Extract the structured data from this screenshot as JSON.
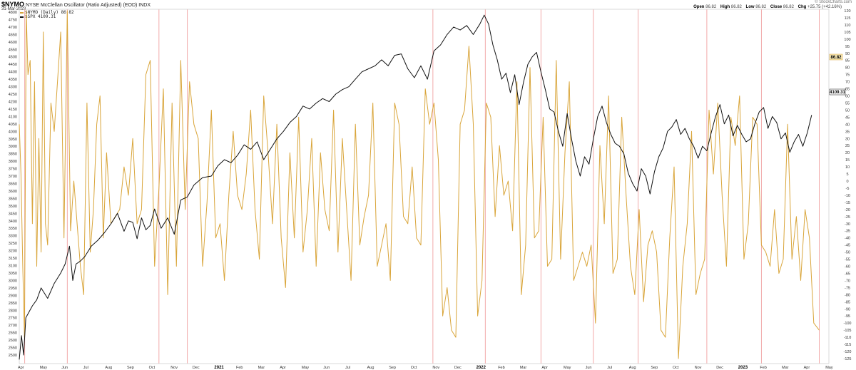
{
  "header": {
    "symbol": "$NYMO",
    "title": "NYSE McClellan Oscillator (Ratio Adjusted) (EOD) INDX",
    "date": "31-Mar-2023",
    "credit": "© StockCharts.com",
    "ohlc": {
      "open_label": "Open",
      "open": "86.82",
      "high_label": "High",
      "high": "86.82",
      "low_label": "Low",
      "low": "86.82",
      "close_label": "Close",
      "close": "86.82",
      "chg_label": "Chg",
      "chg": "+25.75 (+42.16%)"
    }
  },
  "legend": [
    {
      "label": "$NYMO (Daily) 86.82",
      "color": "#d9a53a"
    },
    {
      "label": "$SPX 4109.31",
      "color": "#111111"
    }
  ],
  "badges": {
    "nymo_last": "86.82",
    "spx_last": "4109.31"
  },
  "colors": {
    "nymo": "#d9a53a",
    "spx": "#111111",
    "vline": "#f0a0a0",
    "grid_border": "#cccccc",
    "badge_nymo_bg": "#f6e7b4"
  },
  "chart_data": {
    "type": "line",
    "title": "$NYMO NYSE McClellan Oscillator (Ratio Adjusted) (EOD) INDX",
    "subtitle": "31-Mar-2023",
    "xlabel": "",
    "ylabel_left": "$SPX",
    "ylabel_right": "$NYMO",
    "x_ticks": [
      "Apr",
      "May",
      "Jun",
      "Jul",
      "Aug",
      "Sep",
      "Oct",
      "Nov",
      "Dec",
      "2021",
      "Feb",
      "Mar",
      "Apr",
      "May",
      "Jun",
      "Jul",
      "Aug",
      "Sep",
      "Oct",
      "Nov",
      "Dec",
      "2022",
      "Feb",
      "Mar",
      "Apr",
      "May",
      "Jun",
      "Jul",
      "Aug",
      "Sep",
      "Oct",
      "Nov",
      "Dec",
      "2023",
      "Feb",
      "Mar",
      "Apr",
      "May"
    ],
    "year_ticks": [
      "2021",
      "2022",
      "2023"
    ],
    "y_left_ticks": [
      4800,
      4750,
      4700,
      4650,
      4600,
      4550,
      4500,
      4450,
      4400,
      4350,
      4300,
      4250,
      4200,
      4150,
      4100,
      4050,
      4000,
      3950,
      3900,
      3850,
      3800,
      3750,
      3700,
      3650,
      3600,
      3550,
      3500,
      3450,
      3400,
      3350,
      3300,
      3250,
      3200,
      3150,
      3100,
      3050,
      3000,
      2950,
      2900,
      2850,
      2800,
      2750,
      2700,
      2650,
      2600,
      2550,
      2500
    ],
    "y_left_range": [
      2500,
      4800
    ],
    "y_right_ticks": [
      120,
      115,
      110,
      105,
      100,
      95,
      90,
      85,
      80,
      75,
      70,
      65,
      60,
      55,
      50,
      45,
      40,
      35,
      30,
      25,
      20,
      15,
      10,
      5,
      0,
      -5,
      -10,
      -15,
      -20,
      -25,
      -30,
      -35,
      -40,
      -45,
      -50,
      -55,
      -60,
      -65,
      -70,
      -75,
      -80,
      -85,
      -90,
      -95,
      -100,
      -105,
      -110,
      -115,
      -120,
      -125
    ],
    "y_right_range": [
      -125,
      120
    ],
    "grid": false,
    "legend_position": "top-left",
    "vertical_markers_month_index": [
      0.25,
      2.2,
      6.4,
      7.7,
      18.95,
      21.35,
      23.9,
      26.3,
      28.35,
      31.5,
      34.0,
      36.65
    ],
    "series": [
      {
        "name": "$SPX",
        "axis": "left",
        "color": "#111111",
        "x_month_index": [
          0.0,
          0.1,
          0.2,
          0.3,
          0.45,
          0.6,
          0.8,
          1.0,
          1.3,
          1.6,
          1.9,
          2.1,
          2.3,
          2.45,
          2.6,
          2.8,
          3.0,
          3.3,
          3.6,
          3.9,
          4.2,
          4.5,
          4.8,
          5.0,
          5.2,
          5.4,
          5.6,
          5.8,
          6.0,
          6.2,
          6.5,
          6.8,
          7.1,
          7.4,
          7.7,
          8.0,
          8.4,
          8.8,
          9.1,
          9.4,
          9.7,
          10.0,
          10.3,
          10.6,
          10.9,
          11.2,
          11.5,
          11.8,
          12.1,
          12.4,
          12.7,
          13.0,
          13.3,
          13.6,
          13.9,
          14.2,
          14.5,
          14.8,
          15.1,
          15.4,
          15.7,
          16.0,
          16.3,
          16.6,
          16.9,
          17.2,
          17.5,
          17.8,
          18.1,
          18.4,
          18.7,
          19.0,
          19.3,
          19.6,
          19.9,
          20.2,
          20.5,
          20.8,
          21.1,
          21.3,
          21.5,
          21.7,
          21.9,
          22.1,
          22.3,
          22.5,
          22.7,
          22.9,
          23.1,
          23.3,
          23.5,
          23.7,
          23.9,
          24.1,
          24.3,
          24.5,
          24.7,
          24.9,
          25.1,
          25.3,
          25.5,
          25.7,
          25.9,
          26.1,
          26.3,
          26.5,
          26.7,
          26.9,
          27.1,
          27.3,
          27.5,
          27.7,
          27.9,
          28.1,
          28.3,
          28.5,
          28.7,
          28.9,
          29.1,
          29.3,
          29.5,
          29.7,
          29.9,
          30.1,
          30.3,
          30.5,
          30.7,
          30.9,
          31.1,
          31.3,
          31.5,
          31.7,
          31.9,
          32.1,
          32.3,
          32.5,
          32.7,
          32.9,
          33.1,
          33.3,
          33.5,
          33.7,
          33.9,
          34.1,
          34.3,
          34.5,
          34.7,
          34.9,
          35.1,
          35.3,
          35.5,
          35.7,
          35.9,
          36.1,
          36.3,
          36.5,
          36.65
        ],
        "values": [
          2470,
          2630,
          2500,
          2750,
          2790,
          2830,
          2870,
          2950,
          2880,
          2980,
          3050,
          3110,
          3230,
          3000,
          3110,
          3130,
          3160,
          3230,
          3270,
          3320,
          3380,
          3450,
          3330,
          3400,
          3390,
          3280,
          3420,
          3340,
          3370,
          3480,
          3350,
          3420,
          3310,
          3540,
          3560,
          3640,
          3690,
          3700,
          3770,
          3810,
          3790,
          3840,
          3910,
          3880,
          3930,
          3810,
          3880,
          3950,
          4000,
          4060,
          4100,
          4170,
          4150,
          4190,
          4220,
          4200,
          4250,
          4280,
          4300,
          4350,
          4400,
          4420,
          4440,
          4480,
          4440,
          4510,
          4520,
          4420,
          4360,
          4440,
          4350,
          4540,
          4580,
          4650,
          4700,
          4680,
          4710,
          4650,
          4720,
          4780,
          4720,
          4580,
          4480,
          4350,
          4390,
          4260,
          4380,
          4180,
          4330,
          4450,
          4500,
          4530,
          4400,
          4280,
          4150,
          4130,
          4000,
          3900,
          4120,
          3950,
          3800,
          3700,
          3830,
          3780,
          3950,
          4100,
          4170,
          4060,
          3980,
          3920,
          3900,
          3850,
          3720,
          3650,
          3600,
          3750,
          3700,
          3580,
          3730,
          3830,
          3890,
          4000,
          4030,
          4080,
          3980,
          4020,
          3950,
          3900,
          3820,
          3900,
          3870,
          3990,
          4100,
          4180,
          4050,
          4110,
          3970,
          4040,
          3980,
          3930,
          3950,
          4050,
          4130,
          4160,
          4020,
          4100,
          4060,
          3950,
          3990,
          3860,
          3930,
          3980,
          3900,
          3990,
          4109.31
        ]
      },
      {
        "name": "$NYMO",
        "axis": "right",
        "color": "#d9a53a",
        "x_month_index": [
          0.0,
          0.08,
          0.16,
          0.24,
          0.32,
          0.4,
          0.5,
          0.6,
          0.7,
          0.8,
          0.9,
          1.0,
          1.1,
          1.2,
          1.3,
          1.45,
          1.6,
          1.75,
          1.9,
          2.05,
          2.2,
          2.35,
          2.5,
          2.65,
          2.8,
          2.95,
          3.1,
          3.25,
          3.4,
          3.55,
          3.7,
          3.85,
          4.0,
          4.2,
          4.4,
          4.6,
          4.8,
          5.0,
          5.2,
          5.4,
          5.6,
          5.8,
          6.0,
          6.2,
          6.4,
          6.6,
          6.8,
          7.0,
          7.2,
          7.4,
          7.6,
          7.8,
          8.0,
          8.2,
          8.4,
          8.6,
          8.8,
          9.0,
          9.2,
          9.4,
          9.6,
          9.8,
          10.0,
          10.2,
          10.4,
          10.6,
          10.8,
          11.0,
          11.2,
          11.4,
          11.6,
          11.8,
          12.0,
          12.2,
          12.4,
          12.6,
          12.8,
          13.0,
          13.2,
          13.4,
          13.6,
          13.8,
          14.0,
          14.2,
          14.4,
          14.6,
          14.8,
          15.0,
          15.2,
          15.4,
          15.6,
          15.8,
          16.0,
          16.2,
          16.4,
          16.6,
          16.8,
          17.0,
          17.2,
          17.4,
          17.6,
          17.8,
          18.0,
          18.2,
          18.4,
          18.6,
          18.8,
          19.0,
          19.2,
          19.4,
          19.6,
          19.8,
          20.0,
          20.2,
          20.4,
          20.6,
          20.8,
          21.0,
          21.2,
          21.4,
          21.6,
          21.8,
          22.0,
          22.2,
          22.4,
          22.6,
          22.8,
          23.0,
          23.2,
          23.4,
          23.6,
          23.8,
          24.0,
          24.2,
          24.4,
          24.6,
          24.8,
          25.0,
          25.2,
          25.4,
          25.6,
          25.8,
          26.0,
          26.2,
          26.4,
          26.6,
          26.8,
          27.0,
          27.2,
          27.4,
          27.6,
          27.8,
          28.0,
          28.2,
          28.4,
          28.6,
          28.8,
          29.0,
          29.2,
          29.4,
          29.6,
          29.8,
          30.0,
          30.2,
          30.4,
          30.6,
          30.8,
          31.0,
          31.2,
          31.4,
          31.6,
          31.8,
          32.0,
          32.2,
          32.4,
          32.6,
          32.8,
          33.0,
          33.2,
          33.4,
          33.6,
          33.8,
          34.0,
          34.2,
          34.4,
          34.6,
          34.8,
          35.0,
          35.2,
          35.4,
          35.6,
          35.8,
          36.0,
          36.2,
          36.4,
          36.65
        ],
        "values": [
          40,
          5,
          -60,
          -110,
          120,
          75,
          85,
          -30,
          70,
          -60,
          30,
          -50,
          105,
          -30,
          -45,
          55,
          35,
          70,
          105,
          -40,
          120,
          -35,
          0,
          -30,
          -60,
          -80,
          55,
          -50,
          -20,
          40,
          60,
          -40,
          20,
          -30,
          -25,
          -20,
          10,
          -10,
          30,
          -30,
          -20,
          75,
          85,
          -60,
          -5,
          65,
          -80,
          55,
          -60,
          85,
          -20,
          70,
          40,
          30,
          -60,
          -15,
          50,
          -40,
          -30,
          -70,
          -10,
          35,
          -10,
          -20,
          5,
          50,
          -20,
          -55,
          60,
          20,
          -30,
          40,
          -40,
          -75,
          20,
          -40,
          45,
          -50,
          -20,
          30,
          -60,
          20,
          -20,
          -35,
          50,
          -50,
          30,
          -20,
          -70,
          40,
          -45,
          -25,
          -10,
          55,
          -60,
          -45,
          -30,
          -70,
          55,
          40,
          -25,
          -30,
          10,
          -40,
          -45,
          65,
          40,
          55,
          15,
          -95,
          -75,
          -105,
          -110,
          40,
          50,
          95,
          40,
          -95,
          -70,
          55,
          45,
          -25,
          25,
          -10,
          0,
          -35,
          70,
          -80,
          -45,
          80,
          -40,
          -35,
          45,
          -60,
          -55,
          85,
          -55,
          20,
          70,
          -70,
          -60,
          -50,
          -60,
          -45,
          -100,
          25,
          -30,
          60,
          -65,
          -55,
          45,
          -10,
          -60,
          -80,
          -20,
          -85,
          -45,
          -35,
          -50,
          -105,
          -110,
          -40,
          10,
          -125,
          -60,
          -30,
          35,
          -80,
          -65,
          -55,
          50,
          5,
          55,
          -10,
          -60,
          45,
          25,
          60,
          -55,
          -30,
          45,
          40,
          -45,
          -50,
          -60,
          -20,
          -65,
          -55,
          40,
          -55,
          -25,
          -70,
          -20,
          -40,
          -100,
          -105,
          -60,
          -40,
          -20,
          30,
          86.82
        ]
      }
    ]
  }
}
